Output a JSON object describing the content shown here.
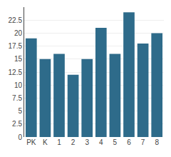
{
  "chart_data": {
    "type": "bar",
    "categories": [
      "PK",
      "K",
      "1",
      "2",
      "3",
      "4",
      "5",
      "6",
      "7",
      "8"
    ],
    "values": [
      19,
      15,
      16,
      12,
      15,
      21,
      16,
      24,
      18,
      20
    ],
    "color": "#2e6b8a",
    "ylim": [
      0,
      25
    ],
    "yticks": [
      0,
      2.5,
      5,
      7.5,
      10,
      12.5,
      15,
      17.5,
      20,
      22.5
    ],
    "grid": true
  }
}
